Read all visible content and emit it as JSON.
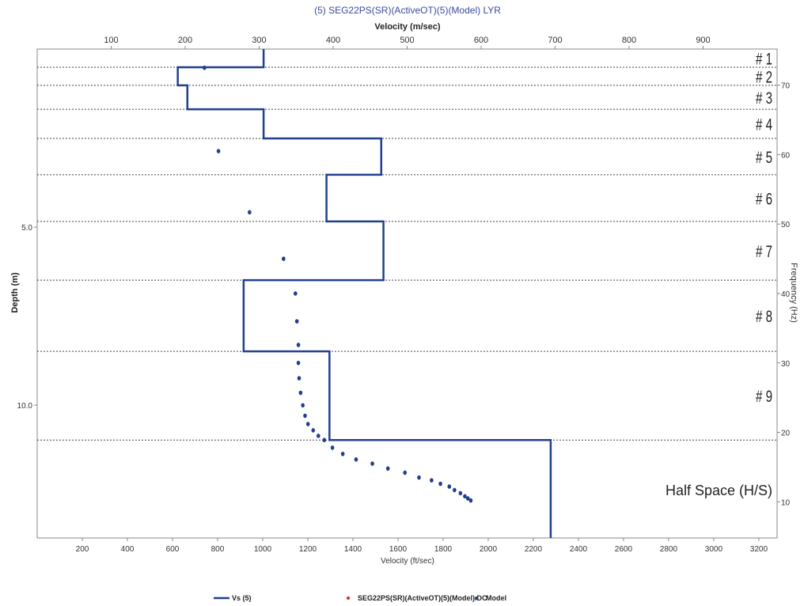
{
  "chart_data": {
    "type": "line",
    "title": "(5) SEG22PS(SR)(ActiveOT)(5)(Model) LYR",
    "top_xlabel": "Velocity (m/sec)",
    "bottom_xlabel": "Velocity (ft/sec)",
    "ylabel": "Depth (m)",
    "right_ylabel": "Frequency (Hz)",
    "top_xlim": [
      0,
      1000
    ],
    "top_xticks": [
      100,
      200,
      300,
      400,
      500,
      600,
      700,
      800,
      900
    ],
    "bottom_xlim": [
      0,
      3281
    ],
    "bottom_xticks": [
      200,
      400,
      600,
      800,
      1000,
      1200,
      1400,
      1600,
      1800,
      2000,
      2200,
      2400,
      2600,
      2800,
      3000,
      3200
    ],
    "ylim": [
      0,
      13.73
    ],
    "yticks": [
      "5.0",
      "10.0"
    ],
    "right_ylim": [
      4.8,
      75.2
    ],
    "right_yticks": [
      10,
      20,
      30,
      40,
      50,
      60,
      70
    ],
    "grid": "horizontal dotted lines at layer boundaries",
    "layer_boundaries_m": [
      0.51,
      1.02,
      1.69,
      2.51,
      3.53,
      4.84,
      6.49,
      8.49,
      10.98
    ],
    "layer_labels": [
      "# 1",
      "# 2",
      "# 3",
      "# 4",
      "# 5",
      "# 6",
      "# 7",
      "# 8",
      "# 9"
    ],
    "half_space_label": "Half Space (H/S)",
    "vs_profile": {
      "name": "Vs (5)",
      "color": "#1f3f8f",
      "layers": [
        {
          "top": 0,
          "bottom": 0.51,
          "vs": 306
        },
        {
          "top": 0.51,
          "bottom": 1.02,
          "vs": 190
        },
        {
          "top": 1.02,
          "bottom": 1.69,
          "vs": 203
        },
        {
          "top": 1.69,
          "bottom": 2.51,
          "vs": 306
        },
        {
          "top": 2.51,
          "bottom": 3.53,
          "vs": 465
        },
        {
          "top": 3.53,
          "bottom": 4.84,
          "vs": 391
        },
        {
          "top": 4.84,
          "bottom": 6.49,
          "vs": 468
        },
        {
          "top": 6.49,
          "bottom": 8.49,
          "vs": 279
        },
        {
          "top": 8.49,
          "bottom": 10.98,
          "vs": 395
        },
        {
          "top": 10.98,
          "bottom": 13.73,
          "vs": 694
        }
      ]
    },
    "dc_series": {
      "name": "SEG22PS(SR)(ActiveOT)(5)(Model).DC",
      "color": "#e02020",
      "points": []
    },
    "model_series": {
      "name": "Model",
      "color": "#1f3f8f",
      "points_velocity_ms_frequency_hz": [
        [
          226,
          72.5
        ],
        [
          245,
          60.5
        ],
        [
          287,
          51.7
        ],
        [
          333,
          45.0
        ],
        [
          349,
          40.0
        ],
        [
          351,
          36.0
        ],
        [
          353,
          32.6
        ],
        [
          353,
          30.0
        ],
        [
          354,
          27.8
        ],
        [
          356,
          25.7
        ],
        [
          359,
          23.9
        ],
        [
          362,
          22.4
        ],
        [
          366,
          21.2
        ],
        [
          373,
          20.3
        ],
        [
          380,
          19.5
        ],
        [
          388,
          18.9
        ],
        [
          399,
          17.8
        ],
        [
          413,
          16.9
        ],
        [
          431,
          16.1
        ],
        [
          453,
          15.5
        ],
        [
          474,
          14.8
        ],
        [
          497,
          14.2
        ],
        [
          516,
          13.5
        ],
        [
          533,
          13.1
        ],
        [
          545,
          12.6
        ],
        [
          557,
          12.2
        ],
        [
          564,
          11.7
        ],
        [
          572,
          11.25
        ],
        [
          578,
          10.8
        ],
        [
          582,
          10.5
        ],
        [
          586,
          10.2
        ]
      ]
    },
    "legend": [
      "Vs (5)",
      "SEG22PS(SR)(ActiveOT)(5)(Model).DC",
      "Model"
    ],
    "legend_position": "bottom"
  }
}
